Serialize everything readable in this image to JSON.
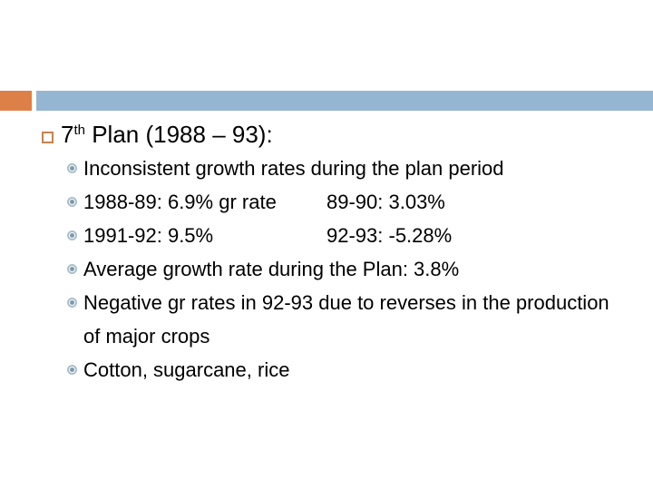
{
  "theme": {
    "accent_orange": "#DD8047",
    "accent_blue": "#94B6D2",
    "square_bullet": "#C8814F",
    "bullet_ring": "#A9C0CC",
    "bullet_dot": "#7E99A8",
    "text_color": "#000000"
  },
  "title": {
    "number": "7",
    "ordinal_suffix": "th",
    "rest": " Plan (1988 – 93):"
  },
  "list": {
    "items": [
      {
        "text": "Inconsistent growth rates during the plan period"
      },
      {
        "text": "1988-89: 6.9% gr rate",
        "col2": "89-90: 3.03%"
      },
      {
        "text": "1991-92: 9.5%",
        "col2": "92-93: -5.28%"
      },
      {
        "text": "Average growth rate during the Plan: 3.8%"
      },
      {
        "text": "Negative gr rates in 92-93 due to reverses in the production of major crops"
      },
      {
        "text": "Cotton, sugarcane, rice"
      }
    ]
  }
}
